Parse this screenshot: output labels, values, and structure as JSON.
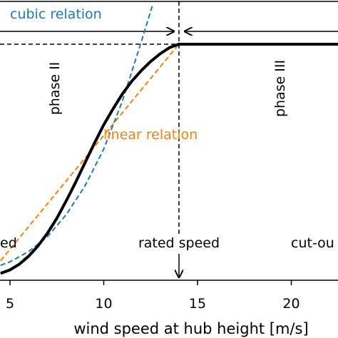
{
  "chart_data": {
    "type": "line",
    "xlabel": "wind speed at hub height [m/s]",
    "x_ticks": [
      5,
      10,
      15,
      20
    ],
    "xlim": [
      4.5,
      22.5
    ],
    "ylim": [
      0,
      1.15
    ],
    "rated_speed": 14,
    "rated_power": 1,
    "series": [
      {
        "name": "",
        "color": "#000000",
        "style": "solid",
        "x": [
          4.5,
          5,
          5.5,
          6,
          6.5,
          7,
          7.5,
          8,
          8.5,
          9,
          9.5,
          10,
          10.5,
          11,
          11.5,
          12,
          12.5,
          13,
          13.5,
          14,
          15,
          16,
          17,
          18,
          19,
          20,
          21,
          22,
          22.5
        ],
        "y": [
          0.005,
          0.02,
          0.045,
          0.08,
          0.125,
          0.18,
          0.245,
          0.32,
          0.4,
          0.485,
          0.57,
          0.65,
          0.72,
          0.785,
          0.84,
          0.885,
          0.925,
          0.958,
          0.985,
          1,
          1,
          1,
          1,
          1,
          1,
          1,
          1,
          1,
          1
        ]
      },
      {
        "name": "cubic relation",
        "color": "#1f77b4",
        "style": "dashed",
        "x": [
          4.5,
          5,
          6,
          7,
          8,
          9,
          10,
          11,
          12,
          12.6
        ],
        "y": [
          0.04,
          0.055,
          0.1,
          0.165,
          0.26,
          0.385,
          0.545,
          0.755,
          1.01,
          1.17
        ]
      },
      {
        "name": "linear relation",
        "color": "#ff7f0e",
        "style": "dashed",
        "x": [
          4.5,
          14
        ],
        "y": [
          0.06,
          1
        ]
      }
    ],
    "annotations": {
      "cubic_label": "cubic relation",
      "linear_label": "linear relation",
      "phase_2": "phase II",
      "phase_3": "phase III",
      "rated_speed": "rated speed",
      "left_cut_label": "ed",
      "right_cut_label": "cut-ou"
    }
  }
}
